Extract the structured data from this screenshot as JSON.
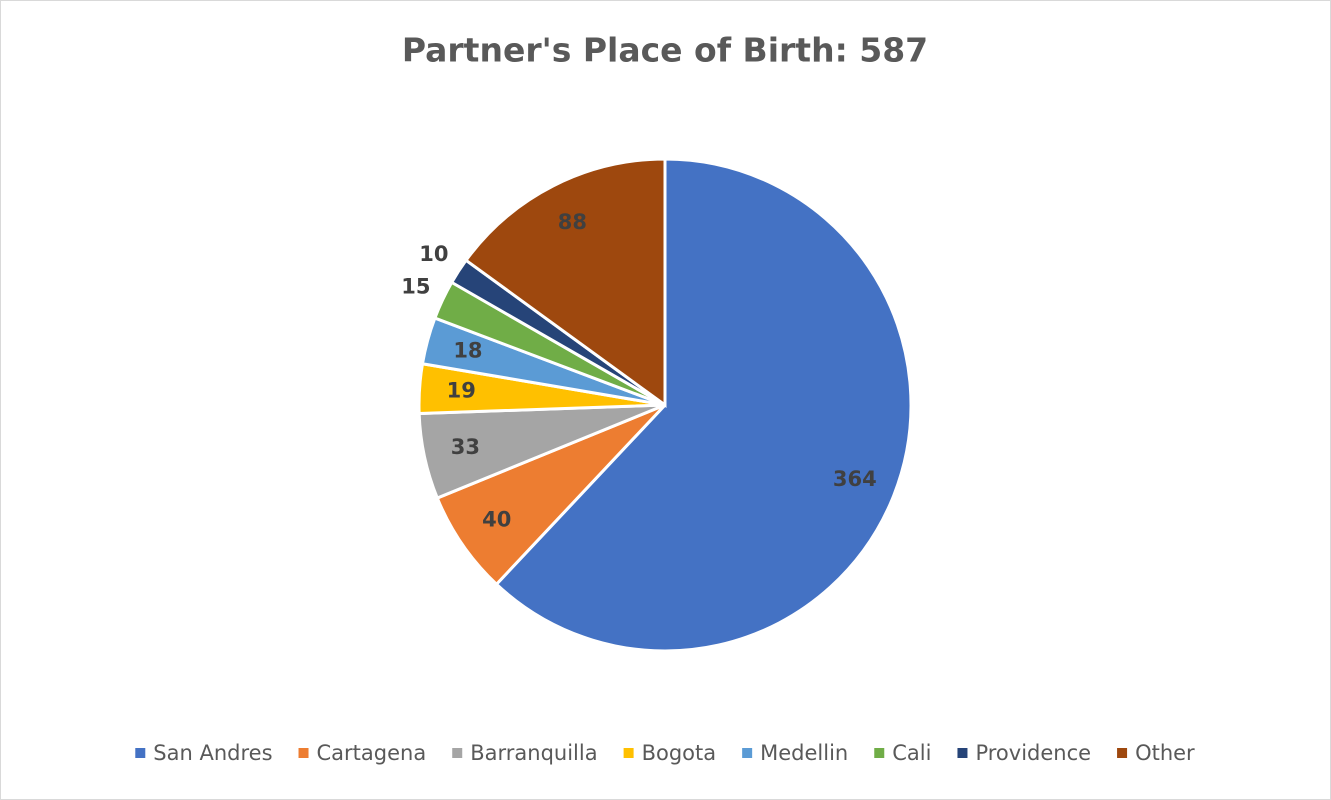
{
  "chart_data": {
    "type": "pie",
    "title": "Partner's Place of Birth: 587",
    "categories": [
      "San Andres",
      "Cartagena",
      "Barranquilla",
      "Bogota",
      "Medellin",
      "Cali",
      "Providence",
      "Other"
    ],
    "values": [
      364,
      40,
      33,
      19,
      18,
      15,
      10,
      88
    ],
    "colors": [
      "#4472c4",
      "#ed7d31",
      "#a5a5a5",
      "#ffc000",
      "#5b9bd5",
      "#70ad47",
      "#264478",
      "#9e480e"
    ],
    "legend": "bottom"
  }
}
